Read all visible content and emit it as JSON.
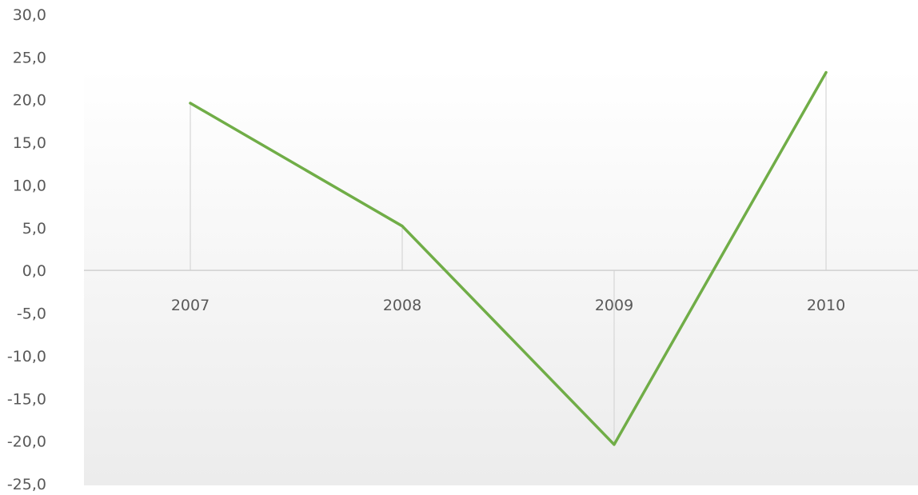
{
  "chart_data": {
    "type": "line",
    "title": "",
    "xlabel": "",
    "ylabel": "",
    "categories": [
      "2007",
      "2008",
      "2009",
      "2010"
    ],
    "series": [
      {
        "values": [
          19.6,
          5.2,
          -20.4,
          23.2
        ],
        "color": "#70ad47"
      }
    ],
    "ylim": [
      -25,
      30
    ],
    "ytick_step": 5,
    "ytick_labels": [
      "30,0",
      "25,0",
      "20,0",
      "15,0",
      "10,0",
      "5,0",
      "0,0",
      "-5,0",
      "-10,0",
      "-15,0",
      "-20,0",
      "-25,0"
    ],
    "grid": false,
    "drop_lines": true,
    "legend": "none",
    "x_labels_position": "at zero line",
    "background": "light gray gradient"
  }
}
